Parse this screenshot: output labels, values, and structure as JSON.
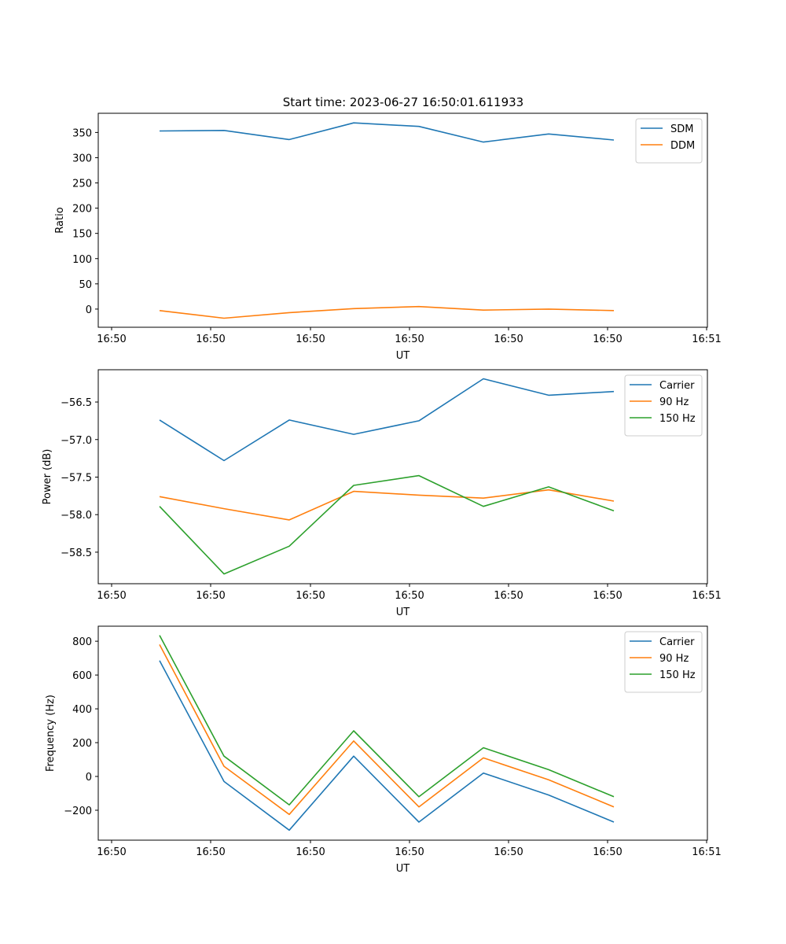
{
  "figure": {
    "title": "Start time: 2023-06-27 16:50:01.611933"
  },
  "chart_data": [
    {
      "type": "line",
      "xlabel": "UT",
      "ylabel": "Ratio",
      "x_tick_labels": [
        "16:50",
        "16:50",
        "16:50",
        "16:50",
        "16:50",
        "16:50",
        "16:50",
        "16:51"
      ],
      "xlim": [
        0,
        3.0
      ],
      "x": [
        0.25,
        0.5,
        0.75,
        1.0,
        1.25,
        1.5,
        1.75,
        2.0
      ],
      "ylim": [
        -36,
        388
      ],
      "y_ticks": [
        0,
        50,
        100,
        150,
        200,
        250,
        300,
        350
      ],
      "legend_position": "top-right",
      "grid": false,
      "series": [
        {
          "name": "SDM",
          "color": "#1f77b4",
          "values": [
            353,
            354,
            336,
            369,
            362,
            331,
            347,
            335
          ]
        },
        {
          "name": "DDM",
          "color": "#ff7f0e",
          "values": [
            -3,
            -18,
            -7,
            1,
            5,
            -2,
            0,
            -3
          ]
        }
      ]
    },
    {
      "type": "line",
      "xlabel": "UT",
      "ylabel": "Power (dB)",
      "x_tick_labels": [
        "16:50",
        "16:50",
        "16:50",
        "16:50",
        "16:50",
        "16:50",
        "16:50",
        "16:51"
      ],
      "xlim": [
        0,
        3.0
      ],
      "x": [
        0.25,
        0.5,
        0.75,
        1.0,
        1.25,
        1.5,
        1.75,
        2.0
      ],
      "ylim": [
        -58.92,
        -56.07
      ],
      "y_ticks": [
        -58.5,
        -58.0,
        -57.5,
        -57.0,
        -56.5
      ],
      "y_tick_labels": [
        "−58.5",
        "−58.0",
        "−57.5",
        "−57.0",
        "−56.5"
      ],
      "legend_position": "top-right",
      "grid": false,
      "series": [
        {
          "name": "Carrier",
          "color": "#1f77b4",
          "values": [
            -56.74,
            -57.28,
            -56.74,
            -56.93,
            -56.75,
            -56.19,
            -56.41,
            -56.36
          ]
        },
        {
          "name": "90 Hz",
          "color": "#ff7f0e",
          "values": [
            -57.76,
            -57.92,
            -58.07,
            -57.69,
            -57.74,
            -57.78,
            -57.67,
            -57.82
          ]
        },
        {
          "name": "150 Hz",
          "color": "#2ca02c",
          "values": [
            -57.89,
            -58.79,
            -58.42,
            -57.61,
            -57.48,
            -57.89,
            -57.63,
            -57.95
          ]
        }
      ]
    },
    {
      "type": "line",
      "xlabel": "UT",
      "ylabel": "Frequency (Hz)",
      "x_tick_labels": [
        "16:50",
        "16:50",
        "16:50",
        "16:50",
        "16:50",
        "16:50",
        "16:50",
        "16:51"
      ],
      "xlim": [
        0,
        3.0
      ],
      "x": [
        0.25,
        0.5,
        0.75,
        1.0,
        1.25,
        1.5,
        1.75,
        2.0
      ],
      "ylim": [
        -377,
        889
      ],
      "y_ticks": [
        -200,
        0,
        200,
        400,
        600,
        800
      ],
      "y_tick_labels": [
        "−200",
        "0",
        "200",
        "400",
        "600",
        "800"
      ],
      "legend_position": "top-right",
      "grid": false,
      "series": [
        {
          "name": "Carrier",
          "color": "#1f77b4",
          "values": [
            685,
            -30,
            -318,
            120,
            -270,
            20,
            -110,
            -270
          ]
        },
        {
          "name": "90 Hz",
          "color": "#ff7f0e",
          "values": [
            780,
            60,
            -225,
            210,
            -180,
            110,
            -20,
            -180
          ]
        },
        {
          "name": "150 Hz",
          "color": "#2ca02c",
          "values": [
            835,
            120,
            -168,
            270,
            -120,
            170,
            40,
            -120
          ]
        }
      ]
    }
  ]
}
